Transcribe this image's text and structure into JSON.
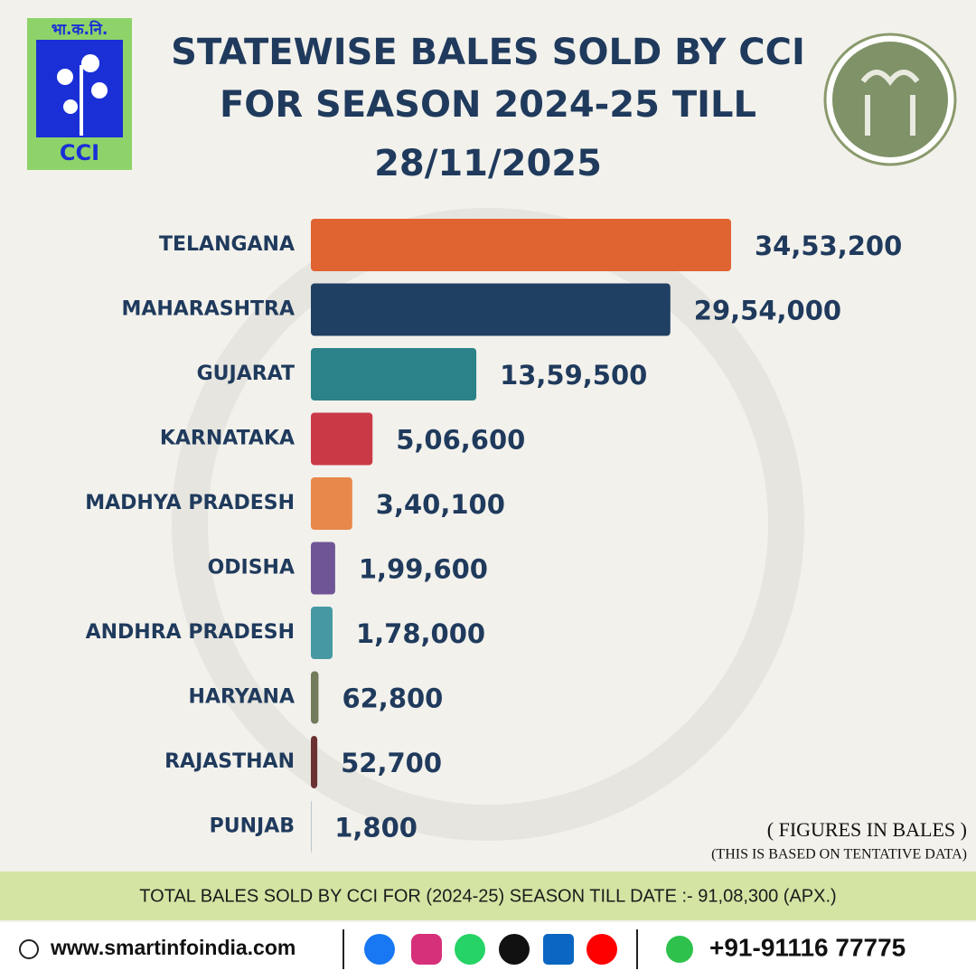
{
  "logo_text": "भा.क.नि.",
  "logo_name": "CCI",
  "chart_data": {
    "type": "bar",
    "orientation": "horizontal",
    "title": "STATEWISE BALES SOLD BY CCI FOR SEASON 2024-25 TILL",
    "subtitle": "28/11/2025",
    "categories": [
      "TELANGANA",
      "MAHARASHTRA",
      "GUJARAT",
      "KARNATAKA",
      "MADHYA PRADESH",
      "ODISHA",
      "ANDHRA PRADESH",
      "HARYANA",
      "RAJASTHAN",
      "PUNJAB"
    ],
    "values": [
      3453200,
      2954000,
      1359500,
      506600,
      340100,
      199600,
      178000,
      62800,
      52700,
      1800
    ],
    "value_labels": [
      "34,53,200",
      "29,54,000",
      "13,59,500",
      "5,06,600",
      "3,40,100",
      "1,99,600",
      "1,78,000",
      "62,800",
      "52,700",
      "1,800"
    ],
    "colors": [
      "#e06332",
      "#1f3f63",
      "#2b8288",
      "#c93a46",
      "#e8884a",
      "#6f5596",
      "#4699a3",
      "#737c5a",
      "#6a3232",
      "#1f3f63"
    ],
    "notes": [
      "( FIGURES IN BALES )",
      "(THIS IS BASED ON TENTATIVE DATA)"
    ]
  },
  "banner": "TOTAL BALES SOLD BY CCI FOR (2024-25) SEASON TILL DATE :- 91,08,300 (APX.)",
  "footer": {
    "website": "www.smartinfoindia.com",
    "phone": "+91-91116 77775"
  }
}
